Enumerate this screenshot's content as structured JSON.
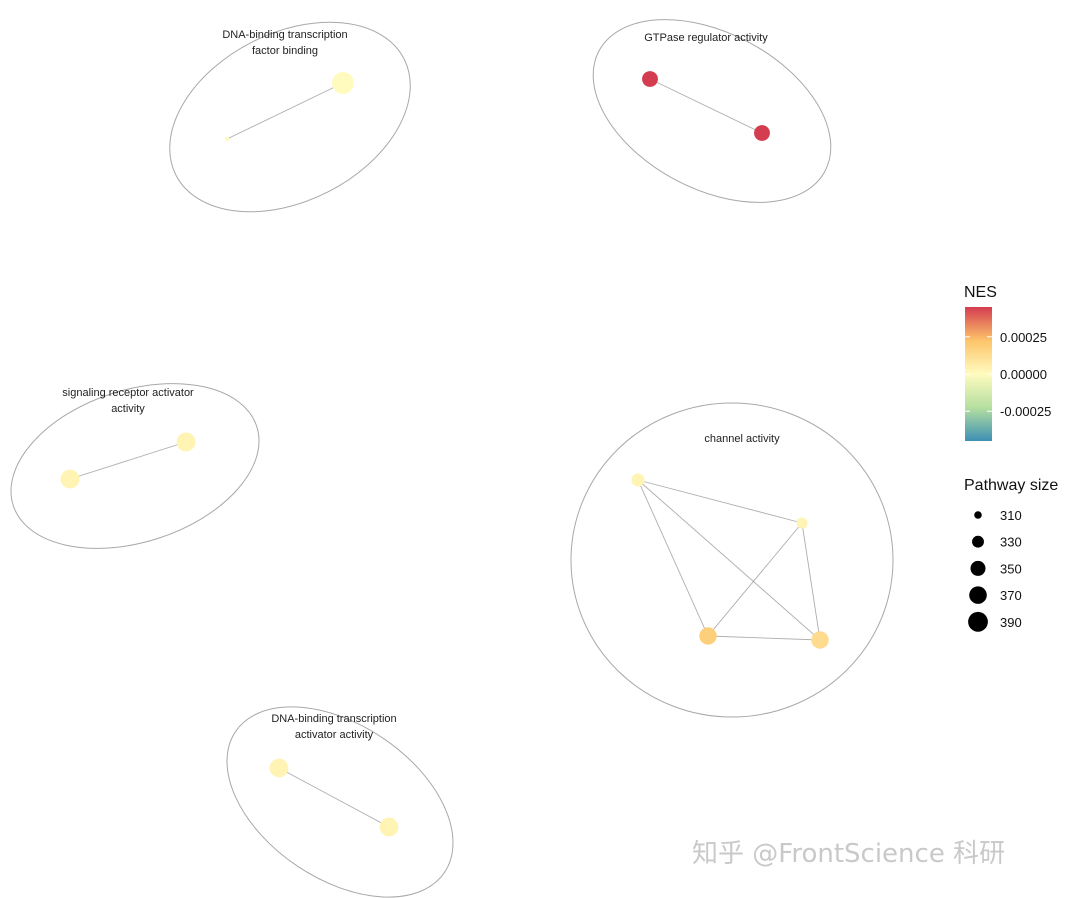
{
  "chart_data": {
    "type": "scatter",
    "subtype": "enrichment-map-network",
    "clusters": [
      {
        "label_lines": [
          "DNA-binding transcription",
          "factor binding"
        ],
        "nodes": [
          {
            "nes": 0.0,
            "size": 300
          },
          {
            "nes": 0.0,
            "size": 390
          }
        ],
        "edges": [
          [
            0,
            1
          ]
        ]
      },
      {
        "label_lines": [
          "GTPase regulator activity"
        ],
        "nodes": [
          {
            "nes": 0.00045,
            "size": 345
          },
          {
            "nes": 0.00045,
            "size": 345
          }
        ],
        "edges": [
          [
            0,
            1
          ]
        ]
      },
      {
        "label_lines": [
          "signaling receptor activator",
          "activity"
        ],
        "nodes": [
          {
            "nes": 3e-05,
            "size": 365
          },
          {
            "nes": 3e-05,
            "size": 365
          }
        ],
        "edges": [
          [
            0,
            1
          ]
        ]
      },
      {
        "label_lines": [
          "channel activity"
        ],
        "nodes": [
          {
            "nes": 3e-05,
            "size": 330
          },
          {
            "nes": 3e-05,
            "size": 320
          },
          {
            "nes": 0.00018,
            "size": 355
          },
          {
            "nes": 0.00013,
            "size": 355
          }
        ],
        "edges": [
          [
            0,
            1
          ],
          [
            0,
            2
          ],
          [
            0,
            3
          ],
          [
            1,
            2
          ],
          [
            1,
            3
          ],
          [
            2,
            3
          ]
        ]
      },
      {
        "label_lines": [
          "DNA-binding transcription",
          "activator activity"
        ],
        "nodes": [
          {
            "nes": 3e-05,
            "size": 365
          },
          {
            "nes": 3e-05,
            "size": 365
          }
        ],
        "edges": [
          [
            0,
            1
          ]
        ]
      }
    ],
    "legend": {
      "color": {
        "title": "NES",
        "ticks": [
          "0.00025",
          "0.00000",
          "-0.00025"
        ],
        "tick_values": [
          0.00025,
          0.0,
          -0.00025
        ],
        "range": [
          -0.00045,
          0.00045
        ],
        "colors": [
          "#3d8fb3",
          "#b5dfa0",
          "#fffbbf",
          "#fdc46a",
          "#d43d4f"
        ]
      },
      "size": {
        "title": "Pathway size",
        "values": [
          310,
          330,
          350,
          370,
          390
        ]
      },
      "position": "right"
    },
    "grid": false
  },
  "watermark": "知乎 @FrontScience 科研"
}
